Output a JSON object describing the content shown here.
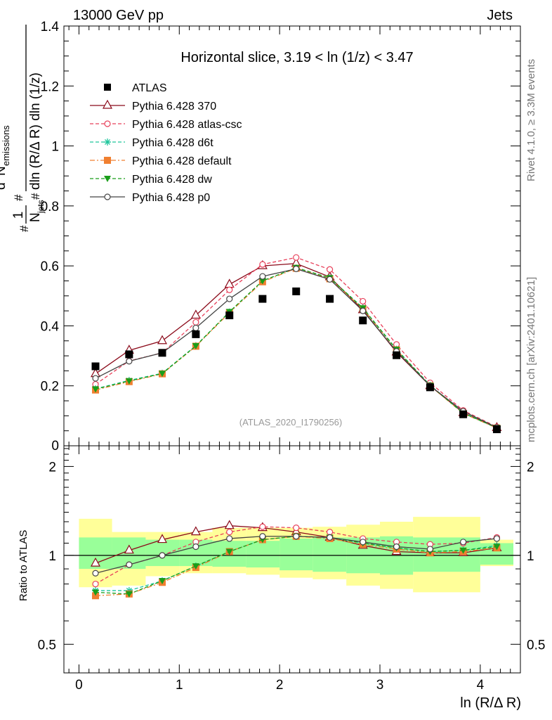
{
  "header": {
    "left": "13000 GeV pp",
    "right": "Jets"
  },
  "side_labels": {
    "rivet": "Rivet 4.1.0, ≥ 3.3M events",
    "mcplots": "mcplots.cern.ch [arXiv:2401.10621]"
  },
  "chart_data": {
    "type": "line",
    "title": "Horizontal slice, 3.19 < ln (1/z) < 3.47",
    "watermark": "(ATLAS_2020_I1790256)",
    "xlabel": "ln (R/Δ R)",
    "ylabel_main": "1/N_jets d²N_emissions/dln(R/ΔR) dln(1/z)",
    "ylabel_main_parts": {
      "one": "1",
      "njets": "N",
      "njets_sub": "jets",
      "d2": "d",
      "d2_sup": "2",
      "nemis": "N",
      "nemis_sub": "emissions",
      "denominator": "dln (R/Δ R) dln (1/z)",
      "hash": "#"
    },
    "ylabel_ratio": "Ratio to ATLAS",
    "xlim": [
      -0.15,
      4.4
    ],
    "ylim_main": [
      0,
      1.4
    ],
    "ylim_ratio": [
      0.4,
      2.35
    ],
    "x_ticks": [
      0,
      1,
      2,
      3,
      4
    ],
    "x_tick_labels": [
      "0",
      "1",
      "2",
      "3",
      "4"
    ],
    "y_ticks_main": [
      0.2,
      0.4,
      0.6,
      0.8,
      1.0,
      1.2,
      1.4
    ],
    "y_tick_labels_main": [
      "0.2",
      "0.4",
      "0.6",
      "0.8",
      "1",
      "1.2",
      "1.4"
    ],
    "y_zero_label": "0",
    "y_ticks_ratio": [
      0.5,
      1,
      2
    ],
    "y_tick_labels_ratio": [
      "0.5",
      "1",
      "2"
    ],
    "x": [
      0.165,
      0.5,
      0.83,
      1.165,
      1.5,
      1.83,
      2.165,
      2.5,
      2.83,
      3.165,
      3.5,
      3.83,
      4.165
    ],
    "bin_edges": [
      0,
      0.33,
      0.665,
      1.0,
      1.33,
      1.665,
      2.0,
      2.33,
      2.665,
      3.0,
      3.33,
      3.665,
      4.0,
      4.33
    ],
    "atlas": {
      "name": "ATLAS",
      "values": [
        0.265,
        0.305,
        0.31,
        0.372,
        0.435,
        0.49,
        0.515,
        0.49,
        0.418,
        0.302,
        0.195,
        0.105,
        0.055
      ]
    },
    "bands": {
      "green_low": [
        0.9,
        0.9,
        0.92,
        0.92,
        0.915,
        0.91,
        0.89,
        0.88,
        0.87,
        0.86,
        0.88,
        0.88,
        0.93
      ],
      "green_high": [
        1.15,
        1.15,
        1.13,
        1.13,
        1.12,
        1.12,
        1.14,
        1.15,
        1.15,
        1.16,
        1.15,
        1.15,
        1.1
      ],
      "yellow_low": [
        0.78,
        0.79,
        0.85,
        0.87,
        0.87,
        0.86,
        0.84,
        0.83,
        0.79,
        0.77,
        0.75,
        0.75,
        0.92
      ],
      "yellow_high": [
        1.33,
        1.2,
        1.2,
        1.2,
        1.24,
        1.24,
        1.24,
        1.25,
        1.27,
        1.3,
        1.35,
        1.35,
        1.13
      ]
    },
    "series": [
      {
        "name": "Pythia 6.428 370",
        "color": "#8b0a1a",
        "dash": "solid",
        "marker": "triangle-open",
        "values": [
          0.24,
          0.318,
          0.35,
          0.435,
          0.538,
          0.6,
          0.608,
          0.563,
          0.453,
          0.312,
          0.2,
          0.11,
          0.06
        ],
        "ratio": [
          0.94,
          1.04,
          1.13,
          1.2,
          1.26,
          1.24,
          1.2,
          1.15,
          1.08,
          1.03,
          1.02,
          1.02,
          1.06
        ]
      },
      {
        "name": "Pythia 6.428 atlas-csc",
        "color": "#e8405a",
        "dash": "dashed",
        "marker": "circle-open",
        "values": [
          0.205,
          0.283,
          0.31,
          0.412,
          0.52,
          0.605,
          0.628,
          0.588,
          0.482,
          0.338,
          0.21,
          0.118,
          0.063
        ],
        "ratio": [
          0.8,
          0.93,
          1.0,
          1.11,
          1.2,
          1.25,
          1.24,
          1.2,
          1.14,
          1.11,
          1.09,
          1.1,
          1.15
        ]
      },
      {
        "name": "Pythia 6.428 d6t",
        "color": "#1dc59b",
        "dash": "dashed",
        "marker": "star",
        "values": [
          0.19,
          0.218,
          0.242,
          0.334,
          0.446,
          0.55,
          0.593,
          0.56,
          0.46,
          0.322,
          0.202,
          0.11,
          0.06
        ],
        "ratio": [
          0.76,
          0.76,
          0.82,
          0.92,
          1.03,
          1.13,
          1.16,
          1.15,
          1.1,
          1.06,
          1.03,
          1.04,
          1.08
        ]
      },
      {
        "name": "Pythia 6.428 default",
        "color": "#f07f30",
        "dash": "dashdot",
        "marker": "square",
        "values": [
          0.186,
          0.214,
          0.24,
          0.332,
          0.444,
          0.547,
          0.592,
          0.557,
          0.457,
          0.32,
          0.2,
          0.108,
          0.059
        ],
        "ratio": [
          0.73,
          0.74,
          0.81,
          0.91,
          1.03,
          1.13,
          1.16,
          1.14,
          1.09,
          1.05,
          1.02,
          1.03,
          1.06
        ]
      },
      {
        "name": "Pythia 6.428 dw",
        "color": "#1a9e1a",
        "dash": "dashed",
        "marker": "triangle-down",
        "values": [
          0.189,
          0.216,
          0.241,
          0.333,
          0.447,
          0.55,
          0.594,
          0.56,
          0.459,
          0.321,
          0.201,
          0.109,
          0.06
        ],
        "ratio": [
          0.75,
          0.74,
          0.82,
          0.92,
          1.03,
          1.13,
          1.16,
          1.15,
          1.1,
          1.06,
          1.03,
          1.04,
          1.07
        ]
      },
      {
        "name": "Pythia 6.428 p0",
        "color": "#444444",
        "dash": "solid",
        "marker": "circle-open",
        "values": [
          0.225,
          0.282,
          0.31,
          0.393,
          0.49,
          0.565,
          0.59,
          0.555,
          0.45,
          0.315,
          0.2,
          0.115,
          0.061
        ],
        "ratio": [
          0.87,
          0.93,
          1.0,
          1.07,
          1.14,
          1.16,
          1.16,
          1.15,
          1.11,
          1.07,
          1.05,
          1.11,
          1.14
        ]
      }
    ]
  }
}
